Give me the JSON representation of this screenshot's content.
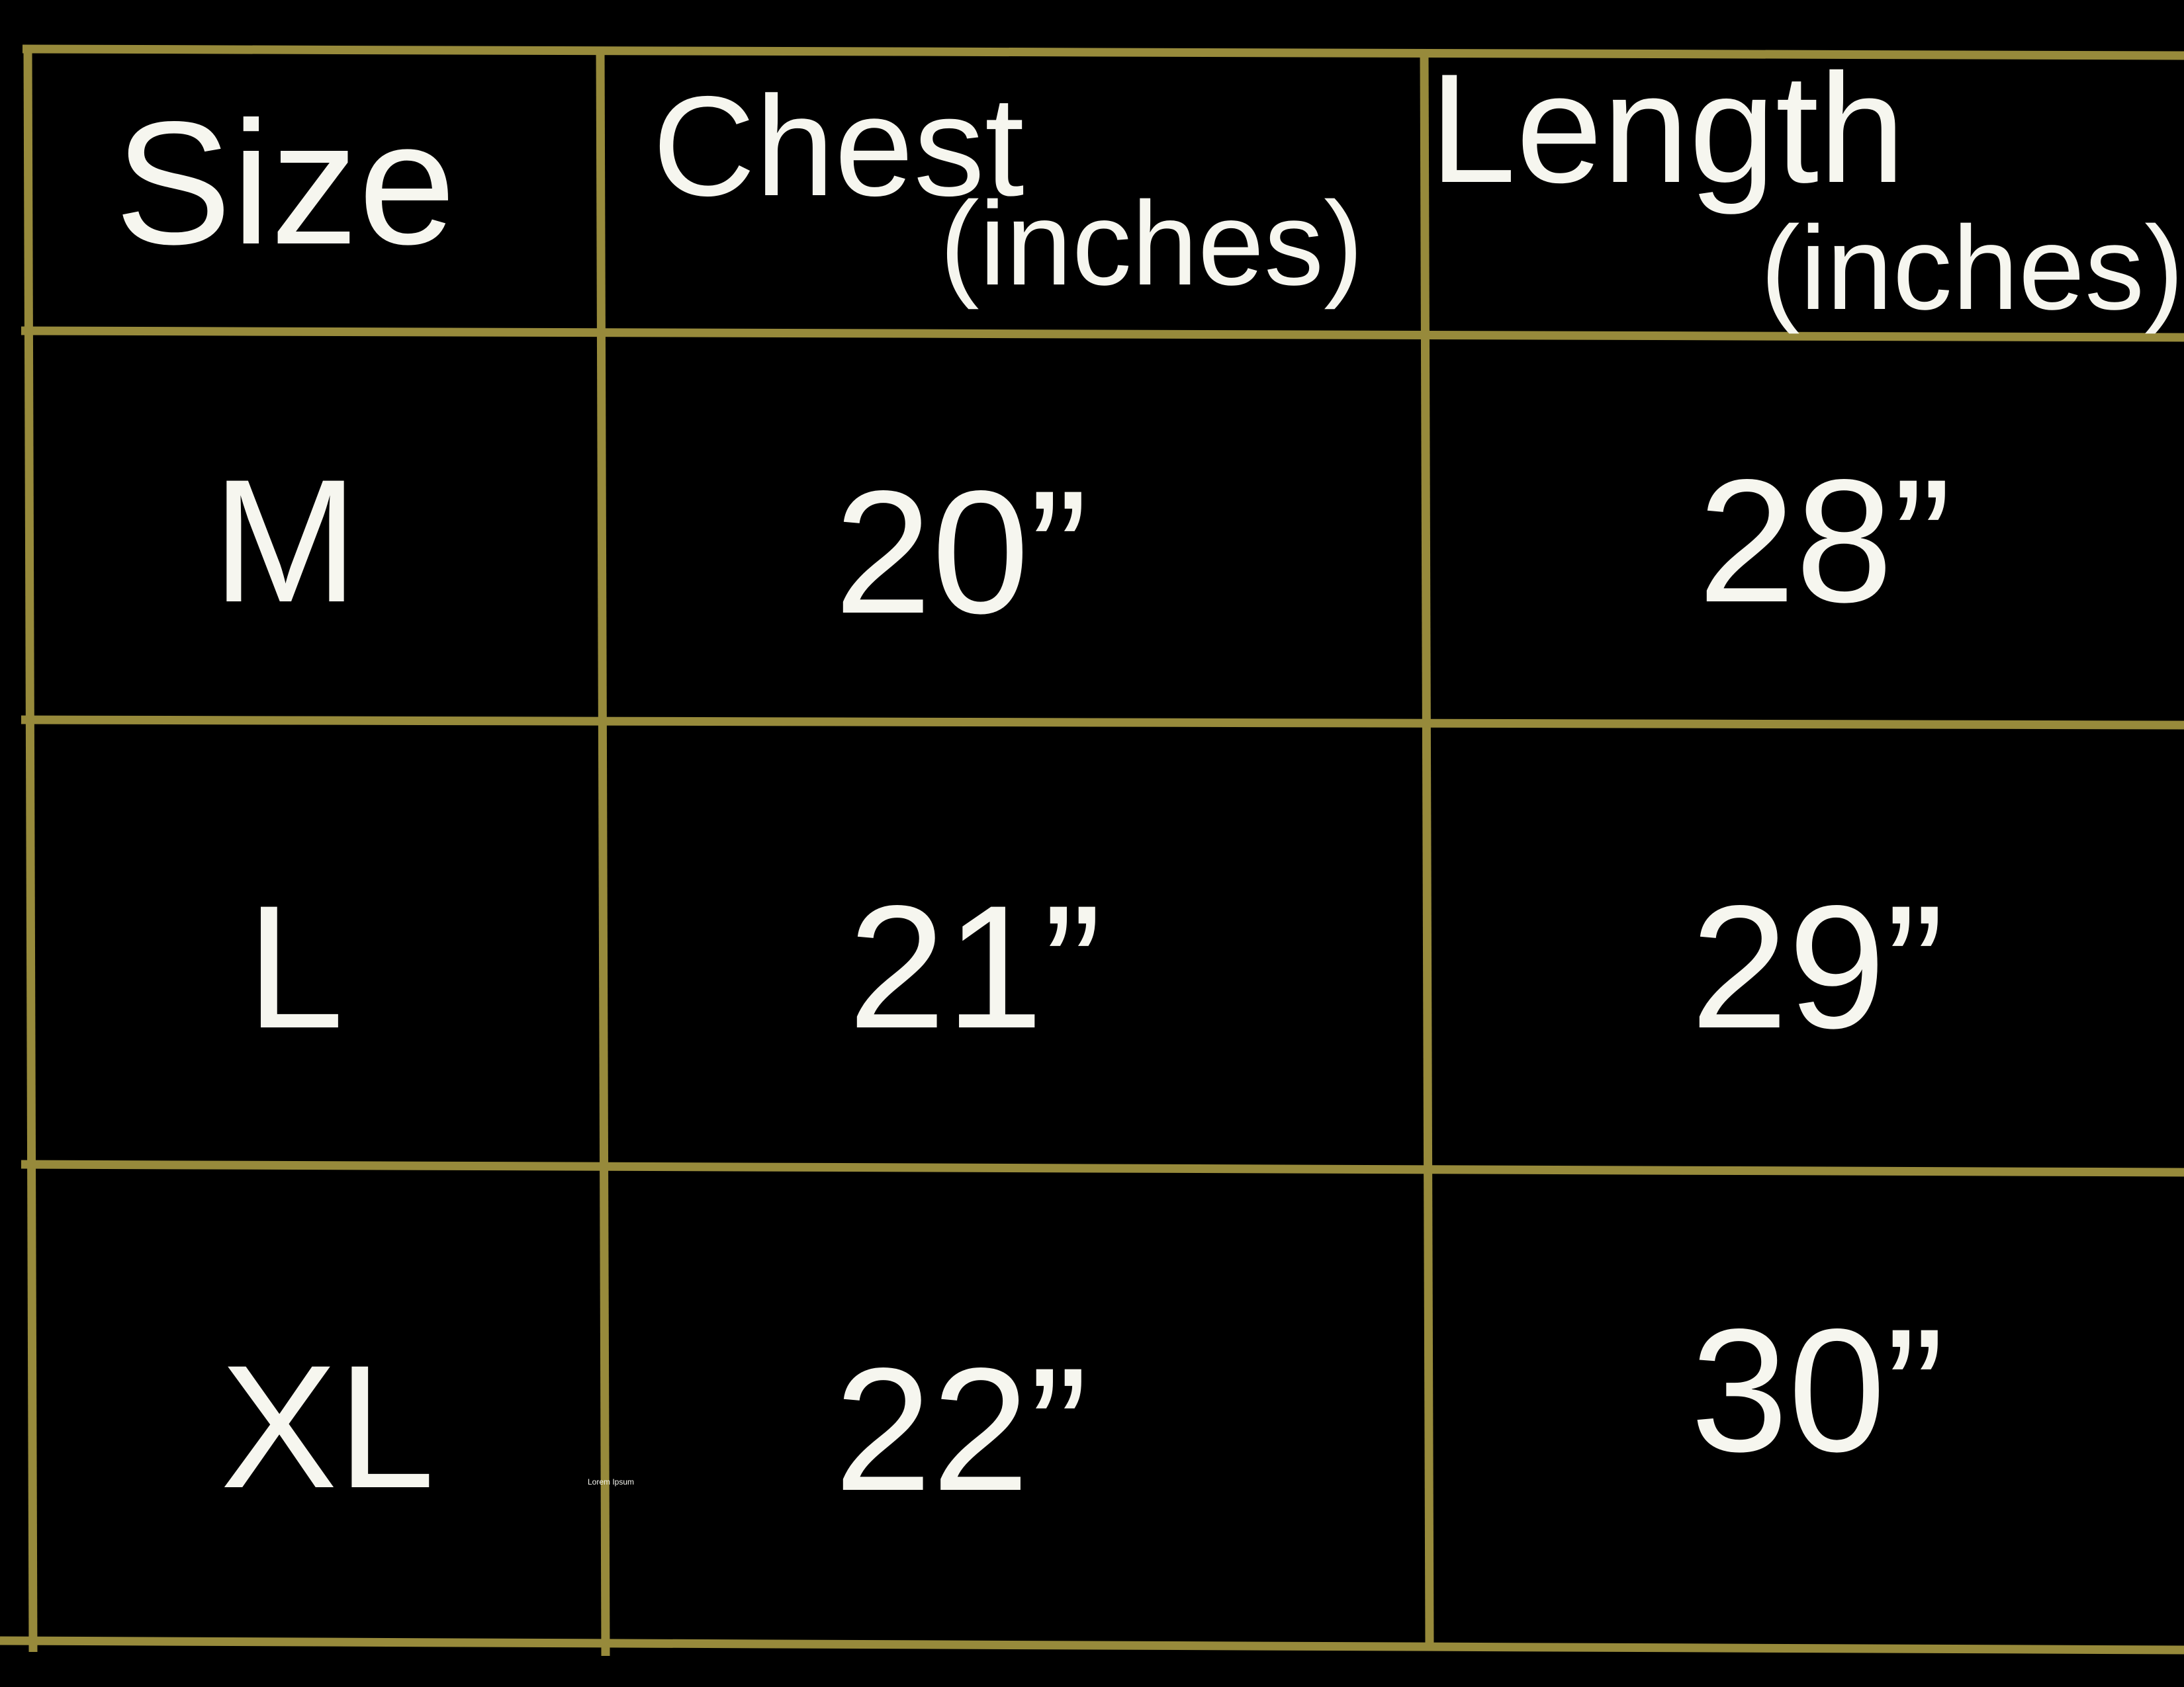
{
  "table": {
    "header": [
      {
        "title": "Size"
      },
      {
        "title": "Chest",
        "unit": "(inches)"
      },
      {
        "title": "Length",
        "unit": "(inches)"
      }
    ],
    "rows": [
      [
        "M",
        "20”",
        "28”"
      ],
      [
        "L",
        "21”",
        "29”"
      ],
      [
        "XL",
        "22”",
        "30”"
      ]
    ]
  },
  "note": "Lorem Ipsum"
}
